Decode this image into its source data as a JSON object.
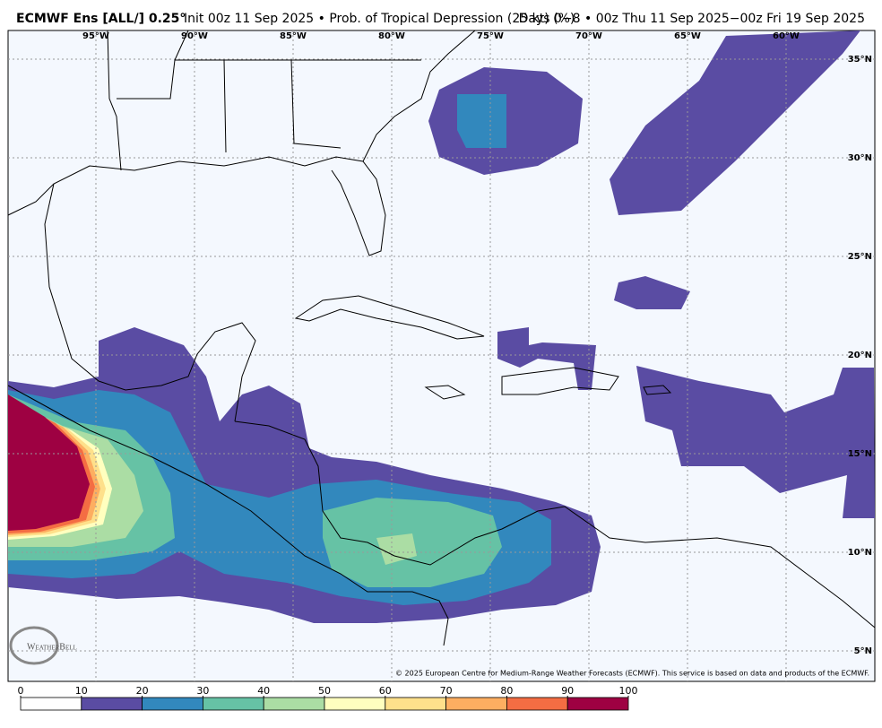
{
  "title": {
    "model": "ECMWF Ens [ALL/] 0.25°",
    "init": "Init 00z 11 Sep 2025 • Prob. of Tropical Depression (25 kt) (%)",
    "valid": "Days 0−8 • 00z Thu 11 Sep 2025−00z Fri 19 Sep 2025"
  },
  "map": {
    "lon_ticks": [
      {
        "value": -95,
        "label": "95°W"
      },
      {
        "value": -90,
        "label": "90°W"
      },
      {
        "value": -85,
        "label": "85°W"
      },
      {
        "value": -80,
        "label": "80°W"
      },
      {
        "value": -75,
        "label": "75°W"
      },
      {
        "value": -70,
        "label": "70°W"
      },
      {
        "value": -65,
        "label": "65°W"
      },
      {
        "value": -60,
        "label": "60°W"
      }
    ],
    "lat_ticks": [
      {
        "value": 35,
        "label": "35°N"
      },
      {
        "value": 30,
        "label": "30°N"
      },
      {
        "value": 25,
        "label": "25°N"
      },
      {
        "value": 20,
        "label": "20°N"
      },
      {
        "value": 15,
        "label": "15°N"
      },
      {
        "value": 10,
        "label": "10°N"
      },
      {
        "value": 5,
        "label": "5°N"
      }
    ],
    "logo": "WeatherBell",
    "copyright": "© 2025 European Centre for Medium-Range Weather Forecasts (ECMWF). This service is based on data and products of the ECMWF."
  },
  "colorbar": {
    "lim": [
      0,
      100
    ],
    "ticks": [
      0,
      10,
      20,
      30,
      40,
      50,
      60,
      70,
      80,
      90,
      100
    ],
    "colors": [
      "#ffffff",
      "#5a4ca3",
      "#3288bd",
      "#66c2a5",
      "#abdda4",
      "#ffffbf",
      "#fee08b",
      "#fdae61",
      "#f46d43",
      "#9e0142"
    ]
  }
}
